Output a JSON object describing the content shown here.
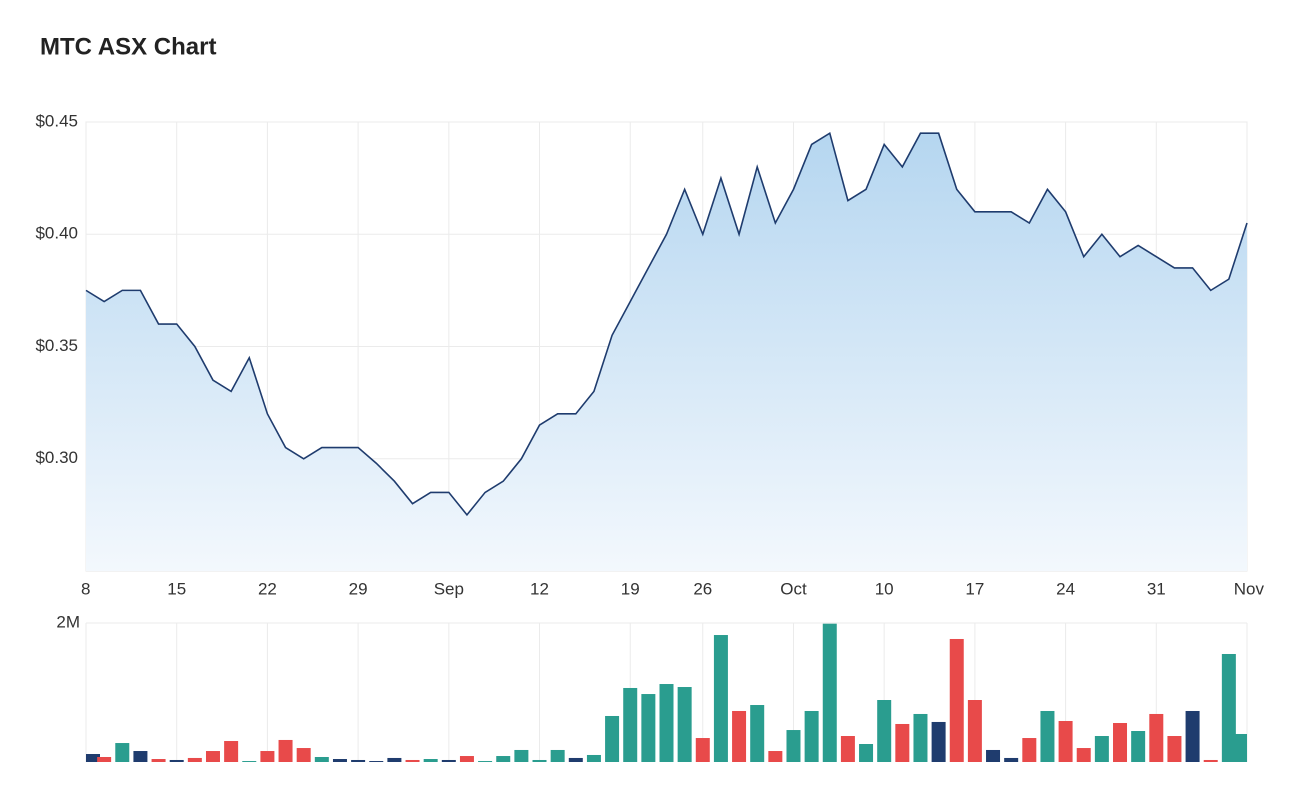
{
  "chart_data": [
    {
      "type": "line",
      "title": "MTC ASX Chart",
      "categories": [
        "8",
        null,
        null,
        null,
        null,
        "15",
        null,
        null,
        null,
        null,
        "22",
        null,
        null,
        null,
        null,
        "29",
        null,
        null,
        null,
        null,
        "Sep",
        null,
        null,
        null,
        null,
        "12",
        null,
        null,
        null,
        null,
        "19",
        null,
        null,
        null,
        "26",
        null,
        null,
        null,
        null,
        "Oct",
        null,
        null,
        null,
        null,
        "10",
        null,
        null,
        null,
        null,
        "17",
        null,
        null,
        null,
        null,
        "24",
        null,
        null,
        null,
        null,
        "31",
        null,
        null,
        null,
        null,
        "Nov"
      ],
      "series": [
        {
          "color": "#1f3c6e",
          "values": [
            0.375,
            0.37,
            0.375,
            0.375,
            0.36,
            0.36,
            0.35,
            0.335,
            0.33,
            0.345,
            0.32,
            0.305,
            0.3,
            0.305,
            0.305,
            0.305,
            0.298,
            0.29,
            0.28,
            0.285,
            0.285,
            0.275,
            0.285,
            0.29,
            0.3,
            0.315,
            0.32,
            0.32,
            0.33,
            0.355,
            0.37,
            0.385,
            0.4,
            0.42,
            0.4,
            0.425,
            0.4,
            0.43,
            0.405,
            0.42,
            0.44,
            0.445,
            0.415,
            0.42,
            0.44,
            0.43,
            0.445,
            0.445,
            0.42,
            0.41,
            0.41,
            0.41,
            0.405,
            0.42,
            0.41,
            0.39,
            0.4,
            0.39,
            0.395,
            0.39,
            0.385,
            0.385,
            0.375,
            0.38,
            0.405
          ]
        }
      ],
      "ylim": [
        0.25,
        0.45
      ],
      "yticks": [
        {
          "value": 0.3,
          "label": "$0.30"
        },
        {
          "value": 0.35,
          "label": "$0.35"
        },
        {
          "value": 0.4,
          "label": "$0.40"
        },
        {
          "value": 0.45,
          "label": "$0.45"
        }
      ],
      "grid": true
    },
    {
      "type": "bar",
      "values": [
        115000,
        72000,
        273000,
        158000,
        43000,
        29000,
        58000,
        158000,
        302000,
        14000,
        158000,
        317000,
        201000,
        72000,
        43000,
        29000,
        14000,
        58000,
        29000,
        43000,
        29000,
        86000,
        14000,
        86000,
        173000,
        29000,
        173000,
        58000,
        101000,
        662000,
        1065000,
        978000,
        1122000,
        1079000,
        345000,
        1827000,
        734000,
        820000,
        158000,
        460000,
        734000,
        1990000,
        374000,
        259000,
        892000,
        547000,
        691000,
        576000,
        1770000,
        892000,
        173000,
        58000,
        345000,
        734000,
        590000,
        201000,
        374000,
        561000,
        446000,
        691000,
        374000,
        734000,
        29000,
        1554000,
        403000
      ],
      "colors": [
        "#1f3c6e",
        "#e84a4a",
        "#2a9d8f",
        "#1f3c6e",
        "#e84a4a",
        "#1f3c6e",
        "#e84a4a",
        "#e84a4a",
        "#e84a4a",
        "#2a9d8f",
        "#e84a4a",
        "#e84a4a",
        "#e84a4a",
        "#2a9d8f",
        "#1f3c6e",
        "#1f3c6e",
        "#1f3c6e",
        "#1f3c6e",
        "#e84a4a",
        "#2a9d8f",
        "#1f3c6e",
        "#e84a4a",
        "#2a9d8f",
        "#2a9d8f",
        "#2a9d8f",
        "#2a9d8f",
        "#2a9d8f",
        "#1f3c6e",
        "#2a9d8f",
        "#2a9d8f",
        "#2a9d8f",
        "#2a9d8f",
        "#2a9d8f",
        "#2a9d8f",
        "#e84a4a",
        "#2a9d8f",
        "#e84a4a",
        "#2a9d8f",
        "#e84a4a",
        "#2a9d8f",
        "#2a9d8f",
        "#2a9d8f",
        "#e84a4a",
        "#2a9d8f",
        "#2a9d8f",
        "#e84a4a",
        "#2a9d8f",
        "#1f3c6e",
        "#e84a4a",
        "#e84a4a",
        "#1f3c6e",
        "#1f3c6e",
        "#e84a4a",
        "#2a9d8f",
        "#e84a4a",
        "#e84a4a",
        "#2a9d8f",
        "#e84a4a",
        "#2a9d8f",
        "#e84a4a",
        "#e84a4a",
        "#1f3c6e",
        "#e84a4a",
        "#2a9d8f",
        "#2a9d8f"
      ],
      "ylim": [
        0,
        2000000
      ],
      "yticks": [
        {
          "value": 2000000,
          "label": "2M"
        }
      ]
    }
  ]
}
